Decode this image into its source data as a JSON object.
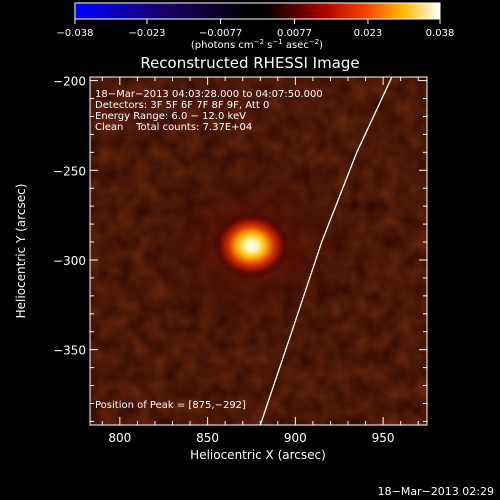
{
  "chart_data": {
    "type": "heatmap",
    "title": "Reconstructed RHESSI Image",
    "xlabel": "Heliocentric X (arcsec)",
    "ylabel": "Heliocentric Y (arcsec)",
    "xlim": [
      783,
      975
    ],
    "ylim": [
      -392,
      -198
    ],
    "x_ticks": [
      800,
      850,
      900,
      950
    ],
    "x_tick_labels": [
      "800",
      "850",
      "900",
      "950"
    ],
    "y_ticks": [
      -200,
      -250,
      -300,
      -350
    ],
    "y_tick_labels": [
      "−200",
      "−250",
      "−300",
      "−350"
    ],
    "colorbar": {
      "range": [
        -0.038,
        0.038
      ],
      "ticks": [
        -0.038,
        -0.023,
        -0.0077,
        0.0077,
        0.023,
        0.038
      ],
      "tick_labels": [
        "−0.038",
        "−0.023",
        "−0.0077",
        "0.0077",
        "0.023",
        "0.038"
      ],
      "unit_line1": "(photons cm",
      "unit_sup1": "−2",
      "unit_line2": " s",
      "unit_sup2": "−1",
      "unit_line3": " asec",
      "unit_sup3": "−2",
      "unit_line4": ")"
    },
    "source": {
      "peak_x": 875,
      "peak_y": -292,
      "peak_value": 0.038
    },
    "limb": [
      [
        955,
        -198
      ],
      [
        935,
        -240
      ],
      [
        915,
        -290
      ],
      [
        898,
        -340
      ],
      [
        880,
        -392
      ]
    ],
    "annotations": {
      "time": "18−Mar−2013 04:03:28.000 to 04:07:50.000",
      "detectors": "Detectors: 3F 5F 6F 7F 8F 9F, Att 0",
      "energy": "Energy Range: 6.0 − 12.0 keV",
      "clean": "Clean    Total counts: 7.37E+04",
      "peak": "Position of Peak = [875,−292]"
    }
  },
  "footer": {
    "timestamp": "18−Mar−2013 02:29"
  }
}
